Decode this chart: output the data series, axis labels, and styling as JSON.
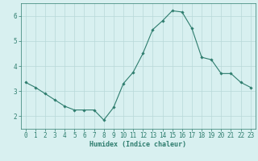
{
  "x": [
    0,
    1,
    2,
    3,
    4,
    5,
    6,
    7,
    8,
    9,
    10,
    11,
    12,
    13,
    14,
    15,
    16,
    17,
    18,
    19,
    20,
    21,
    22,
    23
  ],
  "y": [
    3.35,
    3.15,
    2.9,
    2.65,
    2.4,
    2.25,
    2.25,
    2.25,
    1.85,
    2.35,
    3.3,
    3.75,
    4.5,
    5.45,
    5.8,
    6.2,
    6.15,
    5.5,
    4.35,
    4.25,
    3.7,
    3.7,
    3.35,
    3.15
  ],
  "line_color": "#2e7d6e",
  "marker": "D",
  "marker_size": 1.8,
  "bg_color": "#d8f0f0",
  "grid_color": "#b8d8d8",
  "xlabel": "Humidex (Indice chaleur)",
  "xlabel_fontsize": 6.0,
  "tick_fontsize": 5.5,
  "ylim": [
    1.5,
    6.5
  ],
  "xlim": [
    -0.5,
    23.5
  ],
  "yticks": [
    2,
    3,
    4,
    5,
    6
  ],
  "xticks": [
    0,
    1,
    2,
    3,
    4,
    5,
    6,
    7,
    8,
    9,
    10,
    11,
    12,
    13,
    14,
    15,
    16,
    17,
    18,
    19,
    20,
    21,
    22,
    23
  ]
}
